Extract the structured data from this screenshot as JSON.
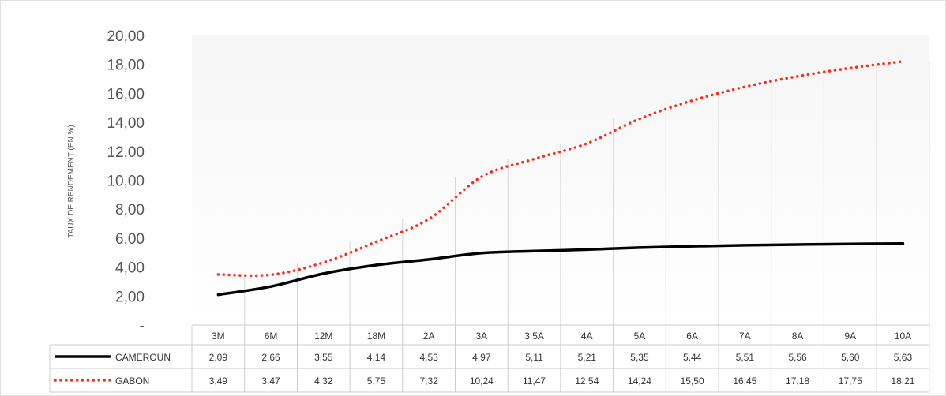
{
  "chart_data": {
    "type": "line",
    "title": "",
    "xlabel": "",
    "ylabel": "TAUX DE RENDEMENT (EN %)",
    "ylim": [
      0,
      20
    ],
    "y_ticks": [
      "-",
      "2,00",
      "4,00",
      "6,00",
      "8,00",
      "10,00",
      "12,00",
      "14,00",
      "16,00",
      "18,00",
      "20,00"
    ],
    "y_tick_values": [
      0,
      2,
      4,
      6,
      8,
      10,
      12,
      14,
      16,
      18,
      20
    ],
    "grid": "vertical",
    "legend": "data-table-bottom",
    "categories": [
      "3M",
      "6M",
      "12M",
      "18M",
      "2A",
      "3A",
      "3,5A",
      "4A",
      "5A",
      "6A",
      "7A",
      "8A",
      "9A",
      "10A"
    ],
    "series": [
      {
        "name": "CAMEROUN",
        "color": "#000000",
        "style": "solid",
        "values": [
          2.09,
          2.66,
          3.55,
          4.14,
          4.53,
          4.97,
          5.11,
          5.21,
          5.35,
          5.44,
          5.51,
          5.56,
          5.6,
          5.63
        ],
        "labels": [
          "2,09",
          "2,66",
          "3,55",
          "4,14",
          "4,53",
          "4,97",
          "5,11",
          "5,21",
          "5,35",
          "5,44",
          "5,51",
          "5,56",
          "5,60",
          "5,63"
        ]
      },
      {
        "name": "GABON",
        "color": "#ff2a1a",
        "style": "dotted",
        "values": [
          3.49,
          3.47,
          4.32,
          5.75,
          7.32,
          10.24,
          11.47,
          12.54,
          14.24,
          15.5,
          16.45,
          17.18,
          17.75,
          18.21
        ],
        "labels": [
          "3,49",
          "3,47",
          "4,32",
          "5,75",
          "7,32",
          "10,24",
          "11,47",
          "12,54",
          "14,24",
          "15,50",
          "16,45",
          "17,18",
          "17,75",
          "18,21"
        ]
      }
    ]
  }
}
